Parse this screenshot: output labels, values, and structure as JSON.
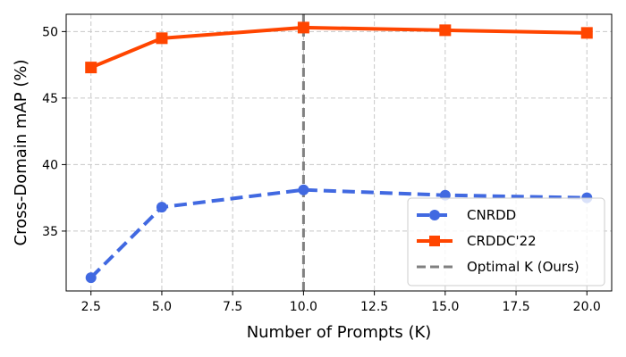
{
  "chart_data": {
    "type": "line",
    "title": "",
    "xlabel": "Number of Prompts (K)",
    "ylabel": "Cross-Domain mAP (%)",
    "x": [
      2.5,
      5.0,
      10.0,
      15.0,
      20.0
    ],
    "xlim": [
      1.625,
      20.875
    ],
    "ylim": [
      30.5,
      51.3
    ],
    "xticks": [
      2.5,
      5.0,
      7.5,
      10.0,
      12.5,
      15.0,
      17.5,
      20.0
    ],
    "xtick_labels": [
      "2.5",
      "5.0",
      "7.5",
      "10.0",
      "12.5",
      "15.0",
      "17.5",
      "20.0"
    ],
    "yticks": [
      35,
      40,
      45,
      50
    ],
    "ytick_labels": [
      "35",
      "40",
      "45",
      "50"
    ],
    "grid": true,
    "legend_position": "lower-right",
    "series": [
      {
        "name": "CNRDD",
        "values": [
          31.5,
          36.8,
          38.1,
          37.7,
          37.5
        ],
        "color": "#4169e1",
        "line_style": "dashed",
        "marker": "circle"
      },
      {
        "name": "CRDDC'22",
        "values": [
          47.3,
          49.5,
          50.3,
          50.1,
          49.9
        ],
        "color": "#ff4500",
        "line_style": "solid",
        "marker": "square"
      }
    ],
    "reference_lines": [
      {
        "name": "Optimal K (Ours)",
        "orientation": "vertical",
        "x": 10.0,
        "color": "#808080",
        "line_style": "dashed"
      }
    ]
  }
}
